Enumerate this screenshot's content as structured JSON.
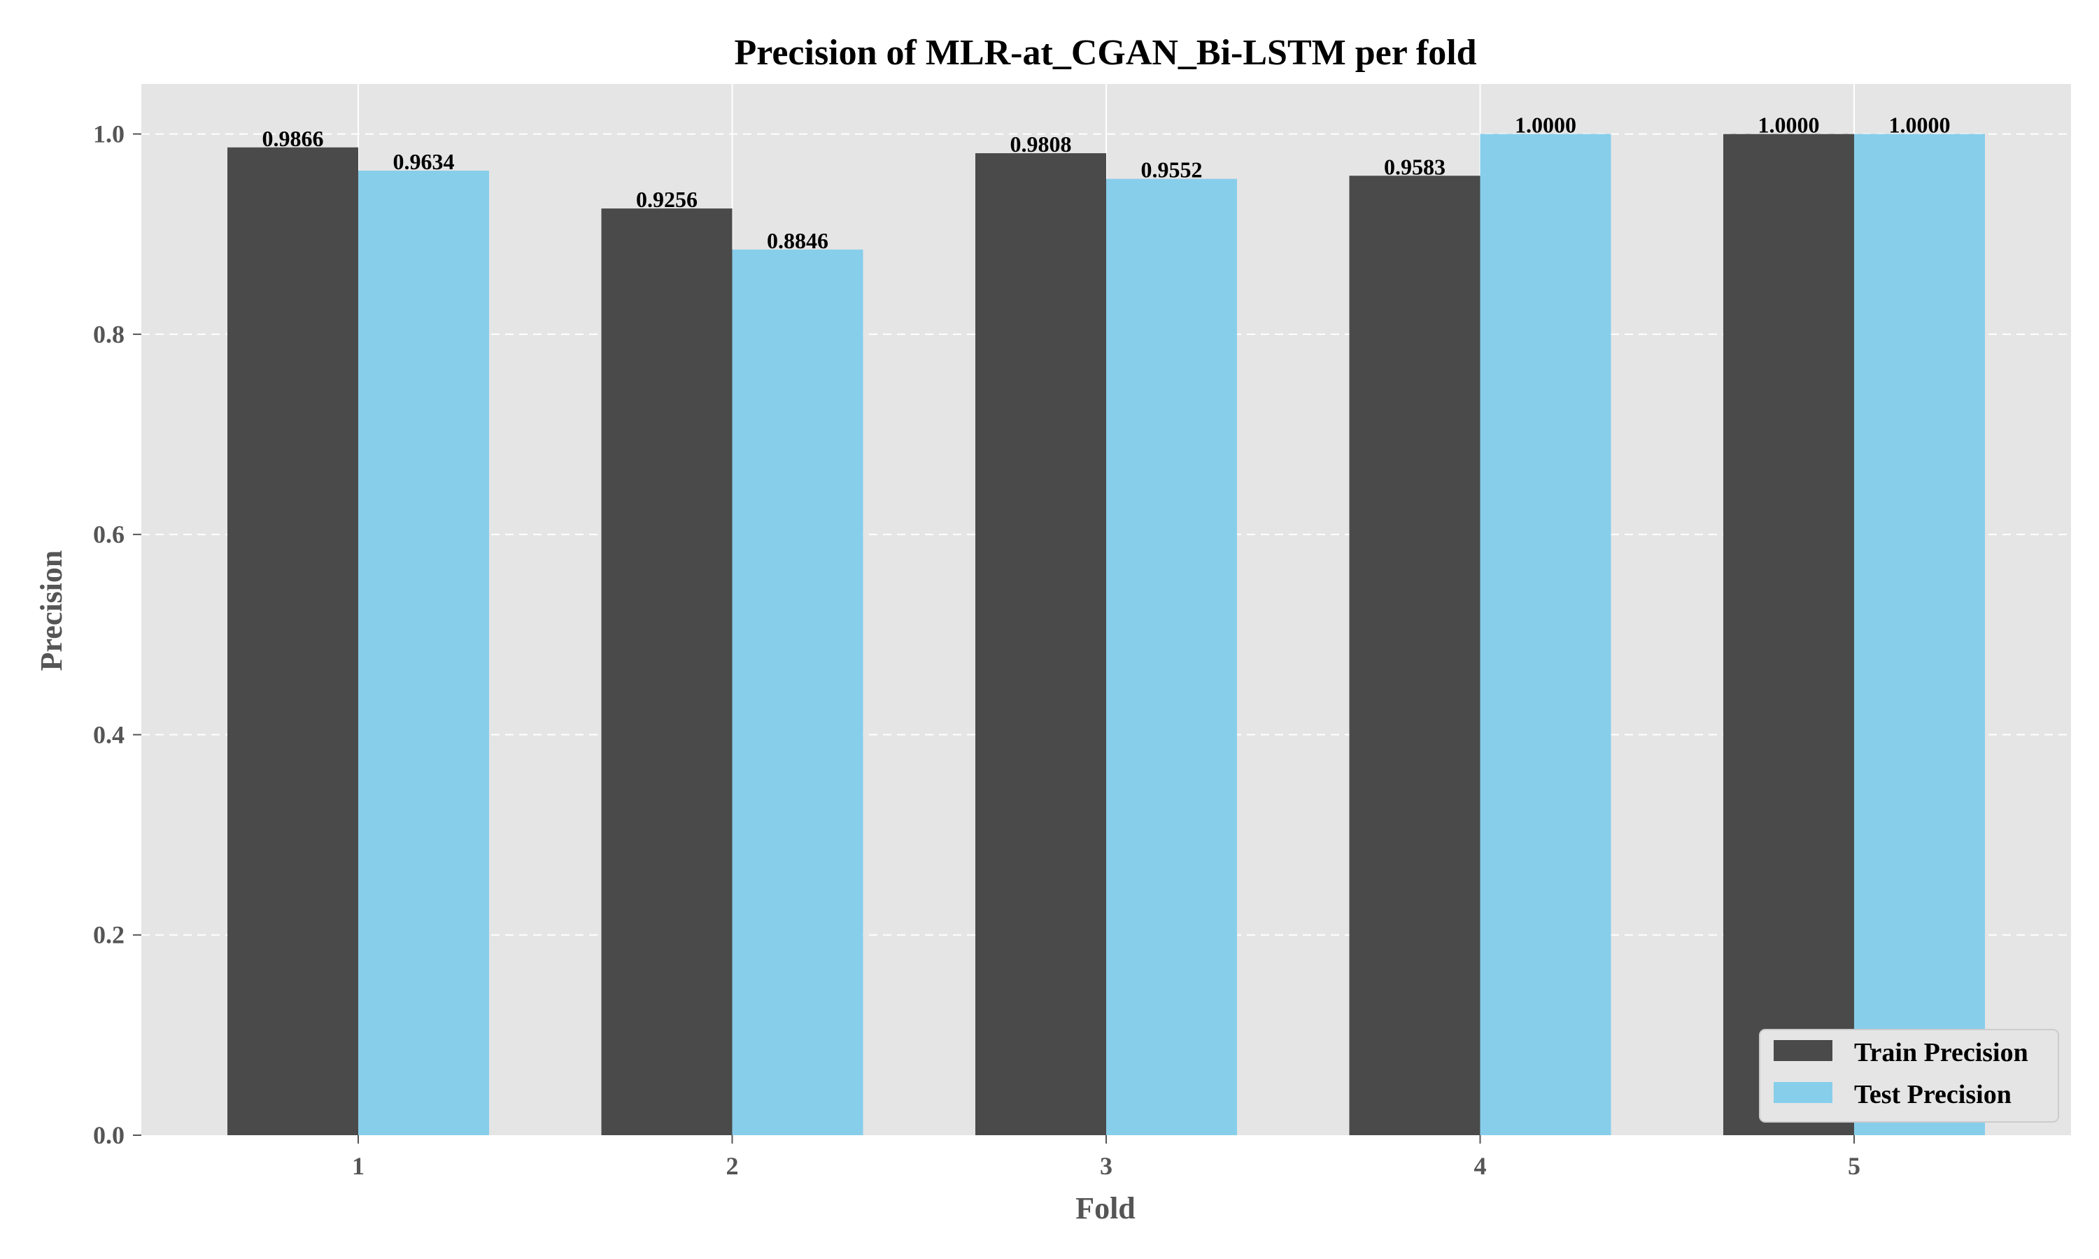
{
  "chart_data": {
    "type": "bar",
    "title": "Precision of MLR-at_CGAN_Bi-LSTM per fold",
    "xlabel": "Fold",
    "ylabel": "Precision",
    "categories": [
      "1",
      "2",
      "3",
      "4",
      "5"
    ],
    "series": [
      {
        "name": "Train Precision",
        "values": [
          0.9866,
          0.9256,
          0.9808,
          0.9583,
          1.0
        ],
        "labels": [
          "0.9866",
          "0.9256",
          "0.9808",
          "0.9583",
          "1.0000"
        ],
        "color": "#4a4a4a"
      },
      {
        "name": "Test Precision",
        "values": [
          0.9634,
          0.8846,
          0.9552,
          1.0,
          1.0
        ],
        "labels": [
          "0.9634",
          "0.8846",
          "0.9552",
          "1.0000",
          "1.0000"
        ],
        "color": "#87ceeb"
      }
    ],
    "yticks": [
      0.0,
      0.2,
      0.4,
      0.6,
      0.8,
      1.0
    ],
    "ytick_labels": [
      "0.0",
      "0.2",
      "0.4",
      "0.6",
      "0.8",
      "1.0"
    ],
    "ylim": [
      0,
      1.05
    ],
    "grid": true,
    "legend_position": "bottom-right",
    "background_color": "#e5e5e5"
  }
}
